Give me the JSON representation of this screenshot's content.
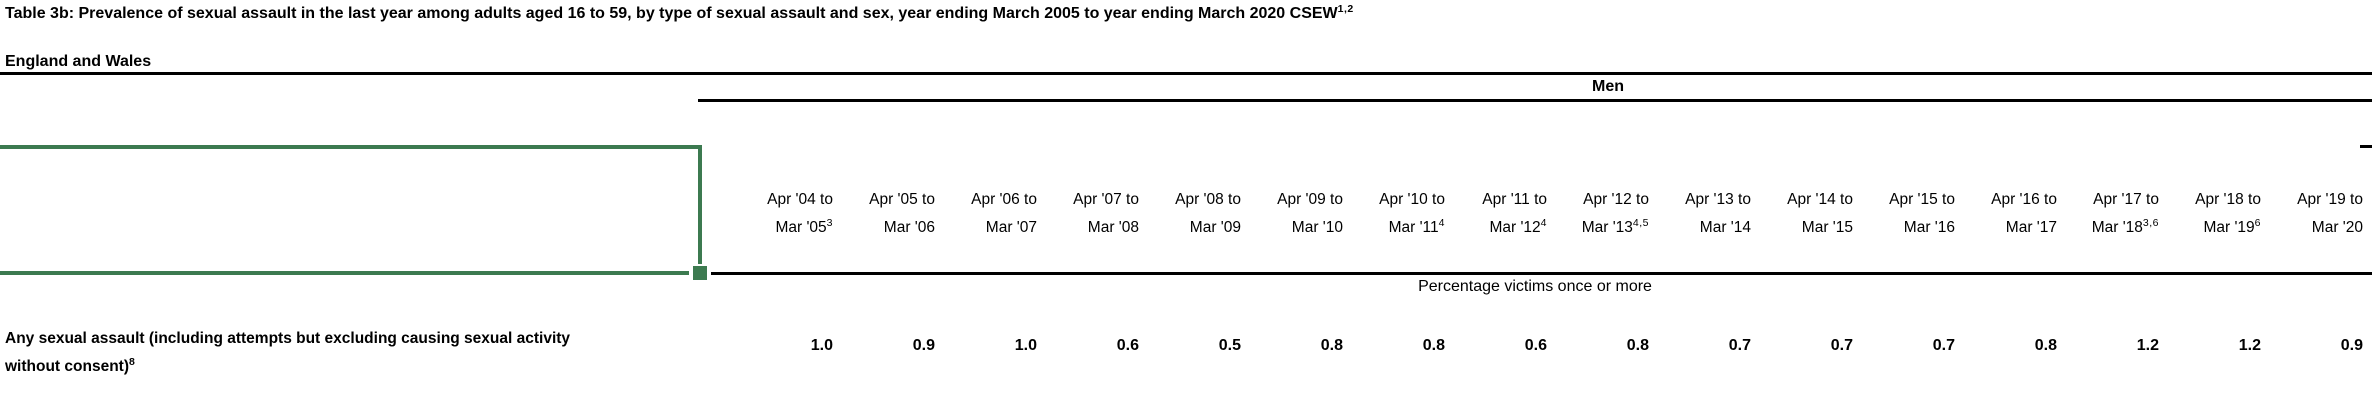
{
  "header": {
    "title": "Table 3b: Prevalence of sexual assault in the last year among adults aged 16 to 59, by type of sexual assault and sex, year ending March 2005 to year ending March 2020 CSEW",
    "title_sup": "1,2",
    "region": "England and Wales"
  },
  "table": {
    "section_label": "Men",
    "subheader": "Percentage victims once or more",
    "columns": [
      {
        "line1": "Apr '04 to",
        "line2": "Mar '05",
        "sup": "3"
      },
      {
        "line1": "Apr '05 to",
        "line2": "Mar '06",
        "sup": ""
      },
      {
        "line1": "Apr '06 to",
        "line2": "Mar '07",
        "sup": ""
      },
      {
        "line1": "Apr '07 to",
        "line2": "Mar '08",
        "sup": ""
      },
      {
        "line1": "Apr '08 to",
        "line2": "Mar '09",
        "sup": ""
      },
      {
        "line1": "Apr '09 to",
        "line2": "Mar '10",
        "sup": ""
      },
      {
        "line1": "Apr '10 to",
        "line2": "Mar '11",
        "sup": "4"
      },
      {
        "line1": "Apr '11 to",
        "line2": "Mar '12",
        "sup": "4"
      },
      {
        "line1": "Apr '12 to",
        "line2": "Mar '13",
        "sup": "4,5"
      },
      {
        "line1": "Apr '13 to",
        "line2": "Mar '14",
        "sup": ""
      },
      {
        "line1": "Apr '14 to",
        "line2": "Mar '15",
        "sup": ""
      },
      {
        "line1": "Apr '15 to",
        "line2": "Mar '16",
        "sup": ""
      },
      {
        "line1": "Apr '16 to",
        "line2": "Mar '17",
        "sup": ""
      },
      {
        "line1": "Apr '17 to",
        "line2": "Mar '18",
        "sup": "3,6"
      },
      {
        "line1": "Apr '18 to",
        "line2": "Mar '19",
        "sup": "6"
      },
      {
        "line1": "Apr '19 to",
        "line2": "Mar '20",
        "sup": ""
      }
    ],
    "row": {
      "label_lines": [
        "Any sexual assault (including attempts but excluding causing sexual activity",
        "without consent)"
      ],
      "label_sup": "8",
      "values": [
        "1.0",
        "0.9",
        "1.0",
        "0.6",
        "0.5",
        "0.8",
        "0.8",
        "0.6",
        "0.8",
        "0.7",
        "0.7",
        "0.7",
        "0.8",
        "1.2",
        "1.2",
        "0.9"
      ]
    }
  },
  "selection": {
    "accent_color": "#3C7A50"
  }
}
